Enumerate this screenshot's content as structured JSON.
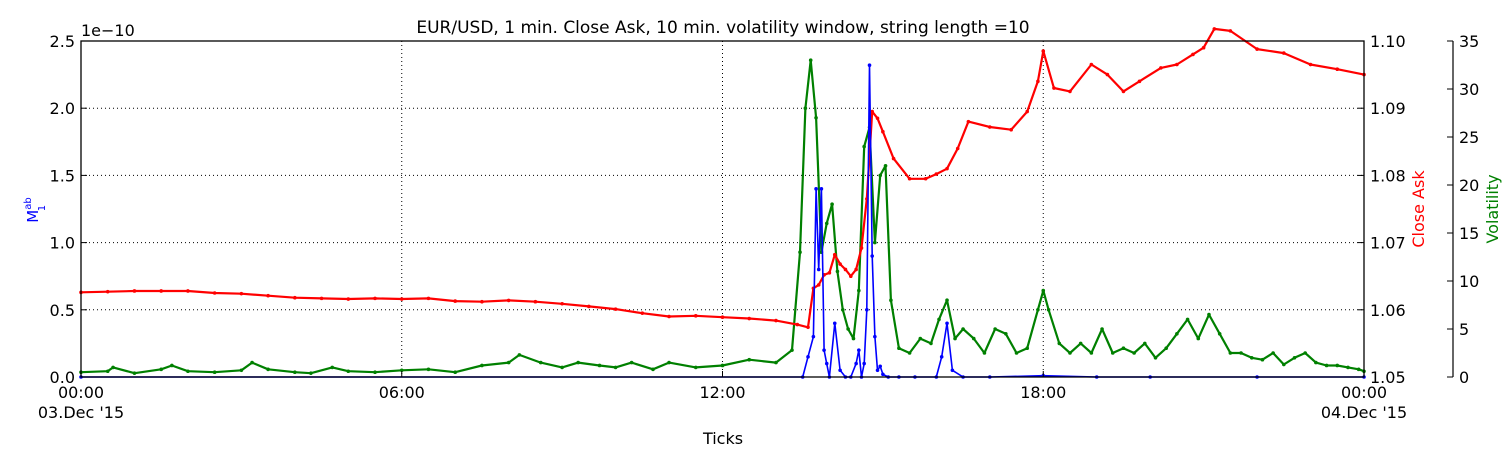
{
  "chart_data": {
    "type": "line",
    "title": "EUR/USD, 1 min. Close Ask, 10 min. volatility window, string length =10",
    "xlabel": "Ticks",
    "x_ticks": [
      "00:00",
      "06:00",
      "12:00",
      "18:00",
      "00:00"
    ],
    "x_date_labels": [
      "03.Dec '15",
      "04.Dec '15"
    ],
    "grid": true,
    "left_axis": {
      "label_main": "M",
      "label_sup": "ab",
      "label_sub": "1",
      "ylim": [
        0,
        2.5e-10
      ],
      "multiplier": "1e−10",
      "ticks": [
        "0.0",
        "0.5",
        "1.0",
        "1.5",
        "2.0",
        "2.5"
      ],
      "color": "#0000ff"
    },
    "right_axis_1": {
      "label": "Close Ask",
      "ylim": [
        1.05,
        1.1
      ],
      "ticks": [
        "1.05",
        "1.06",
        "1.07",
        "1.08",
        "1.09",
        "1.10"
      ],
      "color": "#ff0000"
    },
    "right_axis_2": {
      "label": "Volatility",
      "ylim": [
        0,
        35
      ],
      "ticks": [
        "0",
        "5",
        "10",
        "15",
        "20",
        "25",
        "30",
        "35"
      ],
      "color": "#008000"
    },
    "series": [
      {
        "axis": "right_axis_1",
        "color": "#ff0000",
        "hours": [
          0,
          0.5,
          1,
          1.5,
          2,
          2.5,
          3,
          3.5,
          4,
          4.5,
          5,
          5.5,
          6,
          6.5,
          7,
          7.5,
          8,
          8.5,
          9,
          9.5,
          10,
          10.5,
          11,
          11.5,
          12,
          12.5,
          13,
          13.4,
          13.6,
          13.7,
          13.8,
          13.9,
          14.0,
          14.1,
          14.2,
          14.3,
          14.4,
          14.5,
          14.6,
          14.7,
          14.8,
          14.9,
          15.0,
          15.2,
          15.5,
          15.8,
          16.0,
          16.2,
          16.4,
          16.6,
          17.0,
          17.4,
          17.7,
          17.9,
          18.0,
          18.2,
          18.5,
          18.9,
          19.2,
          19.5,
          19.8,
          20.2,
          20.5,
          20.8,
          21.0,
          21.2,
          21.5,
          22.0,
          22.5,
          23.0,
          23.5,
          24.0
        ],
        "values": [
          1.0626,
          1.0627,
          1.0628,
          1.0628,
          1.0628,
          1.0625,
          1.0624,
          1.0621,
          1.0618,
          1.0617,
          1.0616,
          1.0617,
          1.0616,
          1.0617,
          1.0613,
          1.0612,
          1.0614,
          1.0612,
          1.0609,
          1.0605,
          1.0601,
          1.0595,
          1.059,
          1.0591,
          1.0589,
          1.0587,
          1.0584,
          1.0578,
          1.0574,
          1.0632,
          1.0637,
          1.0652,
          1.0655,
          1.0682,
          1.0668,
          1.066,
          1.065,
          1.066,
          1.0692,
          1.0765,
          1.0895,
          1.0885,
          1.0865,
          1.0825,
          1.0795,
          1.0795,
          1.0802,
          1.081,
          1.084,
          1.088,
          1.0872,
          1.0868,
          1.0895,
          1.094,
          1.0985,
          1.093,
          1.0925,
          1.0965,
          1.095,
          1.0925,
          1.094,
          1.096,
          1.0965,
          1.098,
          1.099,
          1.1018,
          1.1015,
          1.0988,
          1.0982,
          1.0965,
          1.0958,
          1.095
        ]
      },
      {
        "axis": "right_axis_2",
        "color": "#008000",
        "hours": [
          0,
          0.5,
          0.6,
          1,
          1.5,
          1.7,
          2,
          2.5,
          3,
          3.2,
          3.5,
          4,
          4.3,
          4.7,
          5,
          5.5,
          6,
          6.5,
          7,
          7.5,
          8,
          8.2,
          8.6,
          9,
          9.3,
          9.7,
          10,
          10.3,
          10.7,
          11,
          11.5,
          12,
          12.5,
          13,
          13.3,
          13.45,
          13.55,
          13.65,
          13.75,
          13.85,
          13.95,
          14.05,
          14.15,
          14.25,
          14.35,
          14.45,
          14.55,
          14.65,
          14.75,
          14.85,
          14.95,
          15.05,
          15.15,
          15.3,
          15.5,
          15.7,
          15.9,
          16.05,
          16.2,
          16.35,
          16.5,
          16.7,
          16.9,
          17.1,
          17.3,
          17.5,
          17.7,
          17.9,
          18.0,
          18.1,
          18.3,
          18.5,
          18.7,
          18.9,
          19.1,
          19.3,
          19.5,
          19.7,
          19.9,
          20.1,
          20.3,
          20.5,
          20.7,
          20.9,
          21.1,
          21.3,
          21.5,
          21.7,
          21.9,
          22.1,
          22.3,
          22.5,
          22.7,
          22.9,
          23.1,
          23.3,
          23.5,
          23.7,
          23.9,
          24.0
        ],
        "values": [
          0.5,
          0.6,
          1.0,
          0.4,
          0.8,
          1.2,
          0.6,
          0.5,
          0.7,
          1.5,
          0.8,
          0.5,
          0.4,
          1.0,
          0.6,
          0.5,
          0.7,
          0.8,
          0.5,
          1.2,
          1.5,
          2.3,
          1.5,
          1.0,
          1.5,
          1.2,
          1.0,
          1.5,
          0.8,
          1.5,
          1.0,
          1.2,
          1.8,
          1.5,
          2.8,
          13,
          28,
          33,
          27,
          13,
          16,
          18,
          11,
          7,
          5,
          4,
          9,
          24,
          26,
          14,
          21,
          22,
          8,
          3,
          2.5,
          4,
          3.5,
          6,
          8,
          4,
          5,
          4,
          2.5,
          5,
          4.5,
          2.5,
          3,
          7,
          9,
          7,
          3.5,
          2.5,
          3.5,
          2.5,
          5,
          2.5,
          3,
          2.5,
          3.5,
          2,
          3,
          4.5,
          6,
          4,
          6.5,
          4.5,
          2.5,
          2.5,
          2.0,
          1.8,
          2.5,
          1.3,
          2.0,
          2.5,
          1.5,
          1.2,
          1.2,
          1.0,
          0.8,
          0.6
        ]
      },
      {
        "axis": "left_axis",
        "color": "#0000ff",
        "hours": [
          0,
          13.5,
          13.6,
          13.7,
          13.75,
          13.8,
          13.85,
          13.9,
          13.95,
          14.0,
          14.1,
          14.2,
          14.3,
          14.4,
          14.5,
          14.55,
          14.6,
          14.65,
          14.7,
          14.75,
          14.8,
          14.85,
          14.9,
          14.95,
          15.0,
          15.1,
          15.3,
          15.6,
          16.0,
          16.1,
          16.2,
          16.3,
          16.5,
          17.0,
          18.0,
          19.0,
          20.0,
          22.0,
          24.0
        ],
        "values": [
          0,
          0,
          1.5e-11,
          3e-11,
          1.4e-10,
          8e-11,
          1.4e-10,
          2e-11,
          1e-11,
          0,
          4e-11,
          5e-12,
          0,
          0,
          1e-11,
          2e-11,
          0,
          1e-11,
          5e-11,
          2.32e-10,
          9e-11,
          3e-11,
          5e-12,
          8e-12,
          2e-12,
          0,
          0,
          0,
          0,
          1.5e-11,
          4e-11,
          5e-12,
          0,
          0,
          1e-12,
          0,
          0,
          0,
          0
        ]
      }
    ]
  }
}
